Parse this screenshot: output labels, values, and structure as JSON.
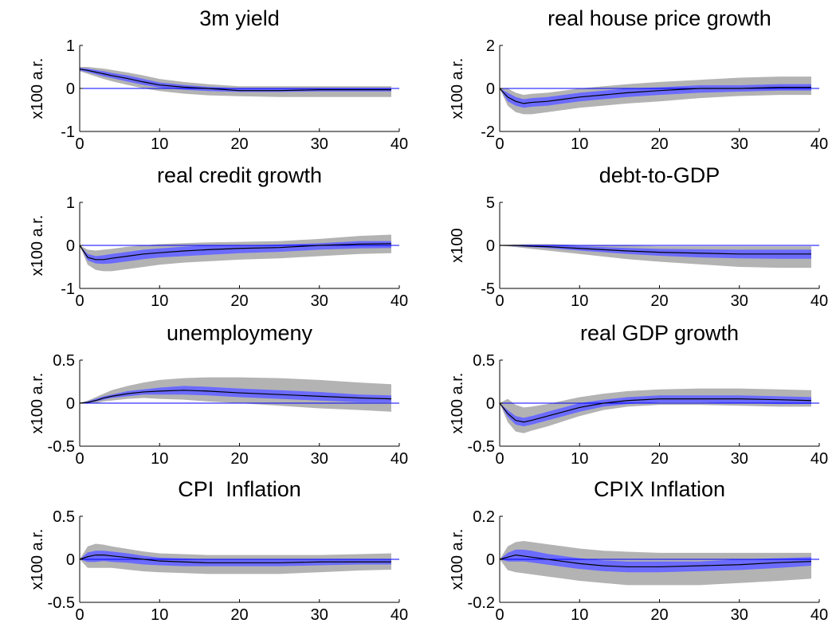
{
  "chart_data": [
    {
      "type": "band",
      "title": "3m yield",
      "ylabel": "x100 a.r.",
      "xlim": [
        0,
        40
      ],
      "xticks": [
        0,
        10,
        20,
        30,
        40
      ],
      "ylim": [
        -1,
        1
      ],
      "yticks": [
        -1,
        0,
        1
      ],
      "x": [
        0,
        1,
        2,
        3,
        4,
        6,
        8,
        10,
        13,
        16,
        20,
        25,
        30,
        35,
        39
      ],
      "values": [
        0.45,
        0.42,
        0.38,
        0.34,
        0.3,
        0.23,
        0.15,
        0.08,
        0.03,
        0.0,
        -0.05,
        -0.05,
        -0.03,
        -0.03,
        -0.03
      ],
      "inner_lower": [
        0.42,
        0.38,
        0.33,
        0.28,
        0.24,
        0.16,
        0.08,
        0.02,
        -0.03,
        -0.06,
        -0.08,
        -0.08,
        -0.07,
        -0.07,
        -0.07
      ],
      "inner_upper": [
        0.48,
        0.46,
        0.43,
        0.4,
        0.36,
        0.3,
        0.22,
        0.14,
        0.08,
        0.04,
        0.0,
        0.0,
        0.0,
        0.0,
        0.0
      ],
      "outer_lower": [
        0.4,
        0.34,
        0.28,
        0.22,
        0.17,
        0.08,
        0.0,
        -0.06,
        -0.12,
        -0.16,
        -0.18,
        -0.2,
        -0.2,
        -0.2,
        -0.2
      ],
      "outer_upper": [
        0.5,
        0.5,
        0.48,
        0.46,
        0.43,
        0.37,
        0.3,
        0.22,
        0.15,
        0.1,
        0.05,
        0.05,
        0.05,
        0.05,
        0.05
      ],
      "hline": 0,
      "outer_color": "#b3b3b3",
      "inner_color": "#6b6bff",
      "line_color": "#000000",
      "hline_color": "#0000ff"
    },
    {
      "type": "band",
      "title": "real house price growth",
      "ylabel": "x100 a.r.",
      "xlim": [
        0,
        40
      ],
      "xticks": [
        0,
        10,
        20,
        30,
        40
      ],
      "ylim": [
        -2,
        2
      ],
      "yticks": [
        -2,
        0,
        2
      ],
      "x": [
        0,
        1,
        2,
        3,
        4,
        6,
        8,
        10,
        13,
        16,
        20,
        25,
        30,
        35,
        39
      ],
      "values": [
        0,
        -0.4,
        -0.6,
        -0.7,
        -0.65,
        -0.6,
        -0.5,
        -0.4,
        -0.3,
        -0.2,
        -0.1,
        0,
        0,
        0.05,
        0.05
      ],
      "inner_lower": [
        0,
        -0.6,
        -0.8,
        -0.9,
        -0.85,
        -0.8,
        -0.7,
        -0.6,
        -0.5,
        -0.4,
        -0.3,
        -0.2,
        -0.15,
        -0.1,
        -0.1
      ],
      "inner_upper": [
        0,
        -0.2,
        -0.4,
        -0.5,
        -0.45,
        -0.4,
        -0.3,
        -0.2,
        -0.1,
        0,
        0.05,
        0.15,
        0.15,
        0.2,
        0.2
      ],
      "outer_lower": [
        0,
        -0.8,
        -1.1,
        -1.2,
        -1.2,
        -1.1,
        -1.0,
        -0.9,
        -0.8,
        -0.7,
        -0.6,
        -0.45,
        -0.35,
        -0.3,
        -0.3
      ],
      "outer_upper": [
        0,
        0,
        -0.2,
        -0.3,
        -0.25,
        -0.2,
        -0.1,
        0,
        0.1,
        0.2,
        0.3,
        0.4,
        0.5,
        0.55,
        0.55
      ],
      "hline": 0,
      "outer_color": "#b3b3b3",
      "inner_color": "#6b6bff",
      "line_color": "#000000",
      "hline_color": "#0000ff"
    },
    {
      "type": "band",
      "title": "real credit growth",
      "ylabel": "x100 a.r.",
      "xlim": [
        0,
        40
      ],
      "xticks": [
        0,
        10,
        20,
        30,
        40
      ],
      "ylim": [
        -1,
        1
      ],
      "yticks": [
        -1,
        0,
        1
      ],
      "x": [
        0,
        1,
        2,
        3,
        4,
        6,
        8,
        10,
        13,
        16,
        20,
        25,
        30,
        35,
        39
      ],
      "values": [
        0,
        -0.28,
        -0.33,
        -0.33,
        -0.3,
        -0.25,
        -0.2,
        -0.17,
        -0.13,
        -0.1,
        -0.07,
        -0.05,
        0,
        0.03,
        0.04
      ],
      "inner_lower": [
        0,
        -0.35,
        -0.42,
        -0.43,
        -0.42,
        -0.37,
        -0.32,
        -0.28,
        -0.25,
        -0.22,
        -0.18,
        -0.15,
        -0.1,
        -0.07,
        -0.06
      ],
      "inner_upper": [
        0,
        -0.2,
        -0.25,
        -0.23,
        -0.2,
        -0.15,
        -0.1,
        -0.07,
        -0.03,
        0,
        0,
        0.02,
        0.05,
        0.1,
        0.1
      ],
      "outer_lower": [
        0,
        -0.45,
        -0.57,
        -0.6,
        -0.6,
        -0.55,
        -0.5,
        -0.45,
        -0.4,
        -0.37,
        -0.33,
        -0.3,
        -0.25,
        -0.2,
        -0.18
      ],
      "outer_upper": [
        0,
        -0.1,
        -0.12,
        -0.1,
        -0.08,
        -0.03,
        0,
        0.03,
        0.05,
        0.07,
        0.08,
        0.1,
        0.15,
        0.22,
        0.25
      ],
      "hline": 0,
      "outer_color": "#b3b3b3",
      "inner_color": "#6b6bff",
      "line_color": "#000000",
      "hline_color": "#0000ff"
    },
    {
      "type": "band",
      "title": "debt-to-GDP",
      "ylabel": "x100",
      "xlim": [
        0,
        40
      ],
      "xticks": [
        0,
        10,
        20,
        30,
        40
      ],
      "ylim": [
        -5,
        5
      ],
      "yticks": [
        -5,
        0,
        5
      ],
      "x": [
        0,
        1,
        2,
        3,
        4,
        6,
        8,
        10,
        13,
        16,
        20,
        25,
        30,
        35,
        39
      ],
      "values": [
        0,
        0,
        0,
        -0.05,
        -0.1,
        -0.15,
        -0.25,
        -0.35,
        -0.5,
        -0.65,
        -0.8,
        -0.9,
        -1,
        -1,
        -1
      ],
      "inner_lower": [
        0,
        -0.05,
        -0.1,
        -0.15,
        -0.2,
        -0.3,
        -0.45,
        -0.6,
        -0.8,
        -1.0,
        -1.2,
        -1.4,
        -1.5,
        -1.55,
        -1.55
      ],
      "inner_upper": [
        0,
        0.02,
        0.05,
        0.05,
        0,
        -0.02,
        -0.05,
        -0.1,
        -0.2,
        -0.3,
        -0.4,
        -0.45,
        -0.5,
        -0.5,
        -0.5
      ],
      "outer_lower": [
        0,
        -0.1,
        -0.2,
        -0.3,
        -0.4,
        -0.6,
        -0.8,
        -1.0,
        -1.3,
        -1.6,
        -1.9,
        -2.2,
        -2.5,
        -2.6,
        -2.6
      ],
      "outer_upper": [
        0,
        0.05,
        0.1,
        0.15,
        0.15,
        0.15,
        0.1,
        0.05,
        0,
        -0.05,
        -0.1,
        -0.1,
        -0.1,
        -0.1,
        -0.1
      ],
      "hline": 0,
      "outer_color": "#b3b3b3",
      "inner_color": "#6b6bff",
      "line_color": "#000000",
      "hline_color": "#0000ff"
    },
    {
      "type": "band",
      "title": "unemploymeny",
      "ylabel": "x100 a.r.",
      "xlim": [
        0,
        40
      ],
      "xticks": [
        0,
        10,
        20,
        30,
        40
      ],
      "ylim": [
        -0.5,
        0.5
      ],
      "yticks": [
        -0.5,
        0,
        0.5
      ],
      "x": [
        0,
        1,
        2,
        3,
        4,
        6,
        8,
        10,
        13,
        16,
        20,
        25,
        30,
        35,
        39
      ],
      "values": [
        0,
        0.01,
        0.03,
        0.06,
        0.08,
        0.11,
        0.13,
        0.14,
        0.15,
        0.14,
        0.12,
        0.1,
        0.08,
        0.06,
        0.05
      ],
      "inner_lower": [
        0,
        0,
        0.02,
        0.04,
        0.06,
        0.08,
        0.1,
        0.1,
        0.1,
        0.09,
        0.07,
        0.05,
        0.03,
        0.01,
        0.01
      ],
      "inner_upper": [
        0,
        0.02,
        0.05,
        0.08,
        0.1,
        0.14,
        0.16,
        0.18,
        0.2,
        0.19,
        0.17,
        0.15,
        0.13,
        0.1,
        0.09
      ],
      "outer_lower": [
        0,
        0,
        0,
        0.02,
        0.03,
        0.05,
        0.06,
        0.05,
        0.04,
        0.02,
        0,
        -0.03,
        -0.06,
        -0.08,
        -0.1
      ],
      "outer_upper": [
        0,
        0.03,
        0.07,
        0.11,
        0.15,
        0.2,
        0.24,
        0.27,
        0.29,
        0.3,
        0.3,
        0.29,
        0.27,
        0.24,
        0.22
      ],
      "hline": 0,
      "outer_color": "#b3b3b3",
      "inner_color": "#6b6bff",
      "line_color": "#000000",
      "hline_color": "#0000ff"
    },
    {
      "type": "band",
      "title": "real GDP growth",
      "ylabel": "x100 a.r.",
      "xlim": [
        0,
        40
      ],
      "xticks": [
        0,
        10,
        20,
        30,
        40
      ],
      "ylim": [
        -0.5,
        0.5
      ],
      "yticks": [
        -0.5,
        0,
        0.5
      ],
      "x": [
        0,
        1,
        2,
        3,
        4,
        6,
        8,
        10,
        13,
        16,
        20,
        25,
        30,
        35,
        39
      ],
      "values": [
        0,
        -0.12,
        -0.2,
        -0.22,
        -0.2,
        -0.15,
        -0.1,
        -0.05,
        0,
        0.03,
        0.05,
        0.05,
        0.05,
        0.04,
        0.03
      ],
      "inner_lower": [
        0,
        -0.16,
        -0.25,
        -0.27,
        -0.25,
        -0.2,
        -0.15,
        -0.1,
        -0.04,
        -0.01,
        0.01,
        0.01,
        0.0,
        -0.01,
        -0.01
      ],
      "inner_upper": [
        0,
        -0.08,
        -0.15,
        -0.17,
        -0.15,
        -0.1,
        -0.05,
        0,
        0.04,
        0.07,
        0.09,
        0.09,
        0.09,
        0.08,
        0.07
      ],
      "outer_lower": [
        0,
        -0.22,
        -0.33,
        -0.35,
        -0.32,
        -0.27,
        -0.21,
        -0.15,
        -0.08,
        -0.04,
        -0.02,
        -0.02,
        -0.03,
        -0.04,
        -0.04
      ],
      "outer_upper": [
        0,
        0.05,
        -0.02,
        -0.05,
        -0.04,
        -0.01,
        0.03,
        0.07,
        0.11,
        0.14,
        0.16,
        0.17,
        0.17,
        0.16,
        0.15
      ],
      "hline": 0,
      "outer_color": "#b3b3b3",
      "inner_color": "#6b6bff",
      "line_color": "#000000",
      "hline_color": "#0000ff"
    },
    {
      "type": "band",
      "title": "CPI  Inflation",
      "ylabel": "x100 a.r.",
      "xlim": [
        0,
        40
      ],
      "xticks": [
        0,
        10,
        20,
        30,
        40
      ],
      "ylim": [
        -0.5,
        0.5
      ],
      "yticks": [
        -0.5,
        0,
        0.5
      ],
      "x": [
        0,
        1,
        2,
        3,
        4,
        6,
        8,
        10,
        13,
        16,
        20,
        25,
        30,
        35,
        39
      ],
      "values": [
        0,
        0.03,
        0.05,
        0.05,
        0.04,
        0.02,
        0,
        -0.02,
        -0.03,
        -0.04,
        -0.04,
        -0.04,
        -0.03,
        -0.03,
        -0.03
      ],
      "inner_lower": [
        0,
        -0.03,
        -0.03,
        -0.02,
        -0.03,
        -0.04,
        -0.06,
        -0.07,
        -0.08,
        -0.08,
        -0.08,
        -0.08,
        -0.07,
        -0.06,
        -0.06
      ],
      "inner_upper": [
        0,
        0.08,
        0.1,
        0.1,
        0.09,
        0.07,
        0.04,
        0.02,
        0.01,
        0,
        0,
        0,
        0,
        0,
        0
      ],
      "outer_lower": [
        0,
        -0.1,
        -0.1,
        -0.1,
        -0.1,
        -0.12,
        -0.14,
        -0.15,
        -0.16,
        -0.17,
        -0.17,
        -0.17,
        -0.15,
        -0.13,
        -0.12
      ],
      "outer_upper": [
        0,
        0.15,
        0.18,
        0.17,
        0.15,
        0.12,
        0.09,
        0.07,
        0.06,
        0.05,
        0.05,
        0.05,
        0.05,
        0.06,
        0.07
      ],
      "hline": 0,
      "outer_color": "#b3b3b3",
      "inner_color": "#6b6bff",
      "line_color": "#000000",
      "hline_color": "#0000ff"
    },
    {
      "type": "band",
      "title": "CPIX Inflation",
      "ylabel": "x100 a.r.",
      "xlim": [
        0,
        40
      ],
      "xticks": [
        0,
        10,
        20,
        30,
        40
      ],
      "ylim": [
        -0.2,
        0.2
      ],
      "yticks": [
        -0.2,
        0,
        0.2
      ],
      "x": [
        0,
        1,
        2,
        3,
        4,
        6,
        8,
        10,
        13,
        16,
        20,
        25,
        30,
        35,
        39
      ],
      "values": [
        0,
        0.01,
        0.02,
        0.015,
        0.01,
        0,
        -0.01,
        -0.02,
        -0.03,
        -0.035,
        -0.035,
        -0.03,
        -0.025,
        -0.015,
        -0.01
      ],
      "inner_lower": [
        0,
        -0.01,
        -0.01,
        -0.01,
        -0.015,
        -0.025,
        -0.035,
        -0.045,
        -0.055,
        -0.06,
        -0.06,
        -0.055,
        -0.05,
        -0.04,
        -0.03
      ],
      "inner_upper": [
        0,
        0.03,
        0.045,
        0.045,
        0.04,
        0.025,
        0.015,
        0.005,
        -0.005,
        -0.01,
        -0.01,
        -0.01,
        0,
        0.005,
        0.01
      ],
      "outer_lower": [
        0,
        -0.05,
        -0.06,
        -0.065,
        -0.07,
        -0.08,
        -0.09,
        -0.1,
        -0.11,
        -0.12,
        -0.12,
        -0.12,
        -0.11,
        -0.1,
        -0.09
      ],
      "outer_upper": [
        0,
        0.06,
        0.08,
        0.085,
        0.08,
        0.07,
        0.06,
        0.05,
        0.04,
        0.035,
        0.03,
        0.03,
        0.03,
        0.03,
        0.03
      ],
      "hline": 0,
      "outer_color": "#b3b3b3",
      "inner_color": "#6b6bff",
      "line_color": "#000000",
      "hline_color": "#0000ff"
    }
  ]
}
